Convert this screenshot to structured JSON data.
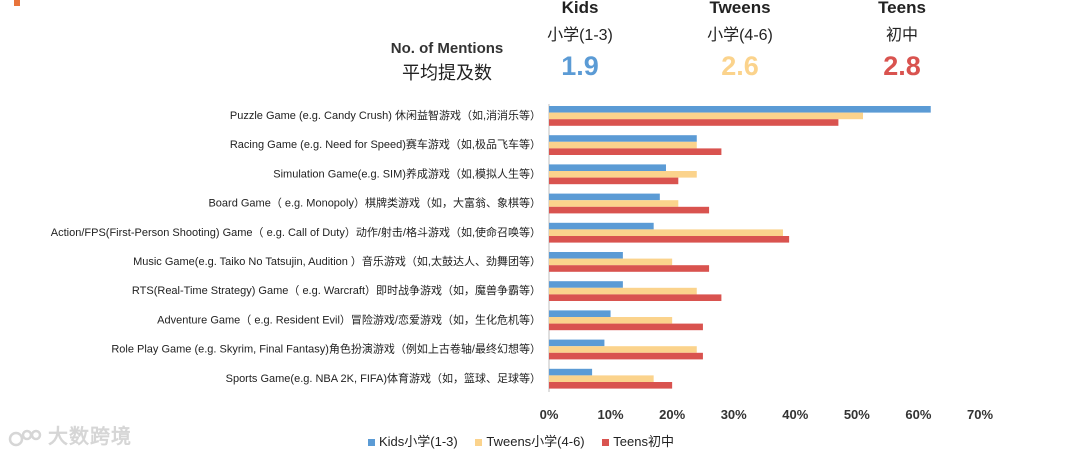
{
  "header": {
    "mentions_en": "No. of Mentions",
    "mentions_cn": "平均提及数",
    "groups": [
      {
        "en": "Kids",
        "cn": "小学(1-3)",
        "value": "1.9",
        "color": "#5b9bd5"
      },
      {
        "en": "Tweens",
        "cn": "小学(4-6)",
        "value": "2.6",
        "color": "#fbd38c"
      },
      {
        "en": "Teens",
        "cn": "初中",
        "value": "2.8",
        "color": "#d9534f"
      }
    ]
  },
  "watermark": "大数跨境",
  "chart_data": {
    "type": "bar",
    "orientation": "horizontal",
    "categories": [
      "Puzzle Game (e.g. Candy Crush) 休闲益智游戏（如,消消乐等）",
      "Racing Game (e.g. Need for Speed)赛车游戏（如,极品飞车等）",
      "Simulation Game(e.g. SIM)养成游戏（如,模拟人生等）",
      "Board Game（ e.g. Monopoly）棋牌类游戏（如，大富翁、象棋等）",
      "Action/FPS(First-Person Shooting) Game（ e.g. Call of Duty）动作/射击/格斗游戏（如,使命召唤等）",
      "Music Game(e.g. Taiko No Tatsujin, Audition ）音乐游戏（如,太鼓达人、劲舞团等）",
      "RTS(Real-Time Strategy) Game（ e.g. Warcraft）即时战争游戏（如，魔兽争霸等）",
      "Adventure Game（ e.g. Resident Evil）冒险游戏/恋爱游戏（如，生化危机等）",
      "Role Play Game (e.g. Skyrim, Final Fantasy)角色扮演游戏（例如上古卷轴/最终幻想等）",
      "Sports Game(e.g. NBA 2K, FIFA)体育游戏（如，篮球、足球等）"
    ],
    "series": [
      {
        "name": "Kids小学(1-3)",
        "color": "#5b9bd5",
        "values": [
          62,
          24,
          19,
          18,
          17,
          12,
          12,
          10,
          9,
          7
        ]
      },
      {
        "name": "Tweens小学(4-6)",
        "color": "#fbd38c",
        "values": [
          51,
          24,
          24,
          21,
          38,
          20,
          24,
          20,
          24,
          17
        ]
      },
      {
        "name": "Teens初中",
        "color": "#d9534f",
        "values": [
          47,
          28,
          21,
          26,
          39,
          26,
          28,
          25,
          25,
          20
        ]
      }
    ],
    "xlim": [
      0,
      70
    ],
    "xticks": [
      "0%",
      "10%",
      "20%",
      "30%",
      "40%",
      "50%",
      "60%",
      "70%"
    ],
    "grid": false,
    "legend_position": "bottom"
  }
}
